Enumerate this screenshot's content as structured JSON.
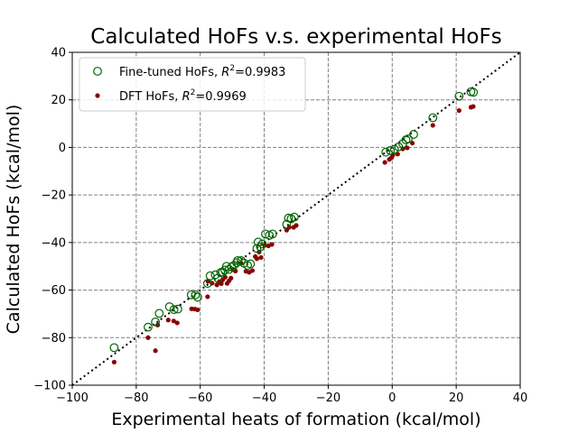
{
  "chart_data": {
    "type": "scatter",
    "title": "Calculated HoFs v.s. experimental HoFs",
    "xlabel": "Experimental heats of formation (kcal/mol)",
    "ylabel": "Calculated HoFs (kcal/mol)",
    "xlim": [
      -100,
      40
    ],
    "ylim": [
      -100,
      40
    ],
    "xticks": [
      -100,
      -80,
      -60,
      -40,
      -20,
      0,
      20,
      40
    ],
    "yticks": [
      -100,
      -80,
      -60,
      -40,
      -20,
      0,
      20,
      40
    ],
    "grid": true,
    "legend_position": "upper-left",
    "reference_line": {
      "style": "dotted",
      "color": "#000000",
      "from": [
        -100,
        -100
      ],
      "to": [
        40,
        40
      ]
    },
    "series": [
      {
        "name": "Fine-tuned HoFs, R^2=0.9983",
        "legend_prefix": "Fine-tuned HoFs, ",
        "legend_r2": "=0.9983",
        "marker": "hollow-circle",
        "color": "#006400",
        "points": [
          [
            -86.9,
            -84.2
          ],
          [
            -76.3,
            -75.6
          ],
          [
            -74.0,
            -73.4
          ],
          [
            -72.8,
            -69.8
          ],
          [
            -69.6,
            -67.0
          ],
          [
            -68.2,
            -68.2
          ],
          [
            -67.0,
            -68.0
          ],
          [
            -62.8,
            -62.0
          ],
          [
            -61.5,
            -62.0
          ],
          [
            -60.8,
            -63.0
          ],
          [
            -57.7,
            -57.2
          ],
          [
            -56.9,
            -54.0
          ],
          [
            -55.3,
            -53.6
          ],
          [
            -54.5,
            -55.0
          ],
          [
            -53.6,
            -52.6
          ],
          [
            -53.0,
            -52.5
          ],
          [
            -52.3,
            -51.6
          ],
          [
            -51.8,
            -50.0
          ],
          [
            -51.0,
            -51.3
          ],
          [
            -50.2,
            -50.3
          ],
          [
            -49.5,
            -49.6
          ],
          [
            -48.6,
            -48.5
          ],
          [
            -48.3,
            -47.6
          ],
          [
            -47.2,
            -47.6
          ],
          [
            -46.3,
            -48.7
          ],
          [
            -45.2,
            -49.6
          ],
          [
            -44.3,
            -49.0
          ],
          [
            -42.3,
            -42.5
          ],
          [
            -41.9,
            -39.8
          ],
          [
            -41.2,
            -41.8
          ],
          [
            -40.6,
            -40.6
          ],
          [
            -39.6,
            -36.4
          ],
          [
            -38.4,
            -37.0
          ],
          [
            -37.4,
            -36.4
          ],
          [
            -33.0,
            -32.3
          ],
          [
            -32.4,
            -29.7
          ],
          [
            -31.6,
            -30.0
          ],
          [
            -30.6,
            -29.3
          ],
          [
            -2.0,
            -2.0
          ],
          [
            -0.6,
            -1.3
          ],
          [
            0.7,
            -0.8
          ],
          [
            2.0,
            0.2
          ],
          [
            3.3,
            1.6
          ],
          [
            4.3,
            3.2
          ],
          [
            5.0,
            3.6
          ],
          [
            6.7,
            5.5
          ],
          [
            12.7,
            12.5
          ],
          [
            20.9,
            21.5
          ],
          [
            24.6,
            23.4
          ],
          [
            25.4,
            23.2
          ]
        ]
      },
      {
        "name": "DFT HoFs, R^2=0.9969",
        "legend_prefix": "DFT HoFs, ",
        "legend_r2": "=0.9969",
        "marker": "filled-circle",
        "color": "#8b0000",
        "points": [
          [
            -86.9,
            -90.3
          ],
          [
            -76.3,
            -80.0
          ],
          [
            -74.0,
            -85.5
          ],
          [
            -73.3,
            -74.7
          ],
          [
            -70.0,
            -72.6
          ],
          [
            -68.3,
            -73.0
          ],
          [
            -67.2,
            -73.8
          ],
          [
            -62.7,
            -67.9
          ],
          [
            -61.7,
            -68.0
          ],
          [
            -60.8,
            -68.3
          ],
          [
            -57.7,
            -62.8
          ],
          [
            -57.6,
            -56.3
          ],
          [
            -56.3,
            -57.1
          ],
          [
            -54.8,
            -57.8
          ],
          [
            -54.0,
            -56.4
          ],
          [
            -53.4,
            -57.3
          ],
          [
            -53.0,
            -55.7
          ],
          [
            -52.2,
            -54.6
          ],
          [
            -51.6,
            -57.2
          ],
          [
            -51.0,
            -56.1
          ],
          [
            -50.4,
            -55.0
          ],
          [
            -49.8,
            -51.3
          ],
          [
            -49.0,
            -52.0
          ],
          [
            -47.2,
            -48.7
          ],
          [
            -45.7,
            -52.1
          ],
          [
            -44.7,
            -52.5
          ],
          [
            -43.7,
            -51.8
          ],
          [
            -42.8,
            -45.9
          ],
          [
            -42.3,
            -46.8
          ],
          [
            -41.6,
            -44.0
          ],
          [
            -41.0,
            -46.3
          ],
          [
            -39.9,
            -41.2
          ],
          [
            -38.7,
            -41.4
          ],
          [
            -37.6,
            -40.8
          ],
          [
            -33.0,
            -34.8
          ],
          [
            -32.2,
            -33.6
          ],
          [
            -30.8,
            -33.6
          ],
          [
            -30.0,
            -32.8
          ],
          [
            -2.3,
            -6.3
          ],
          [
            -0.9,
            -5.0
          ],
          [
            -0.2,
            -4.3
          ],
          [
            0.2,
            -3.2
          ],
          [
            1.7,
            -2.8
          ],
          [
            3.3,
            -0.6
          ],
          [
            4.7,
            -0.2
          ],
          [
            6.3,
            1.8
          ],
          [
            12.7,
            9.3
          ],
          [
            20.9,
            15.5
          ],
          [
            24.6,
            16.9
          ],
          [
            25.3,
            17.2
          ]
        ]
      }
    ]
  }
}
